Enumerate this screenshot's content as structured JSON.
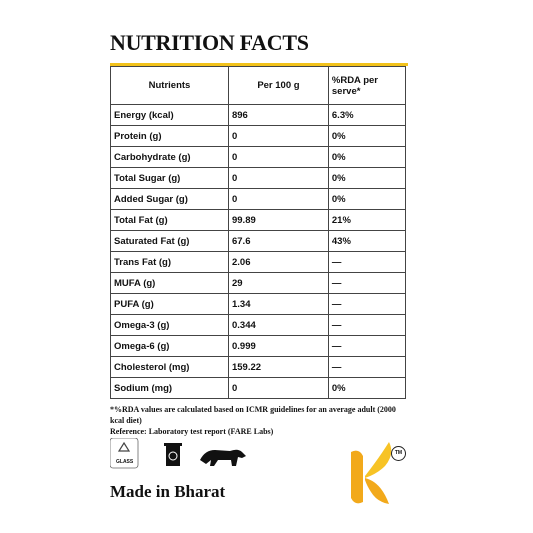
{
  "header": {
    "title": "NUTRITION FACTS"
  },
  "table": {
    "columns": [
      "Nutrients",
      "Per 100 g",
      "%RDA per serve*"
    ],
    "rows": [
      [
        "Energy (kcal)",
        "896",
        "6.3%"
      ],
      [
        "Protein (g)",
        "0",
        "0%"
      ],
      [
        "Carbohydrate (g)",
        "0",
        "0%"
      ],
      [
        "Total Sugar (g)",
        "0",
        "0%"
      ],
      [
        "Added Sugar (g)",
        "0",
        "0%"
      ],
      [
        "Total Fat (g)",
        "99.89",
        "21%"
      ],
      [
        "Saturated Fat (g)",
        "67.6",
        "43%"
      ],
      [
        "Trans Fat (g)",
        "2.06",
        "—"
      ],
      [
        "MUFA (g)",
        "29",
        "—"
      ],
      [
        "PUFA (g)",
        "1.34",
        "—"
      ],
      [
        "Omega-3 (g)",
        "0.344",
        "—"
      ],
      [
        "Omega-6 (g)",
        "0.999",
        "—"
      ],
      [
        "Cholesterol (mg)",
        "159.22",
        "—"
      ],
      [
        "Sodium (mg)",
        "0",
        "0%"
      ]
    ]
  },
  "footnotes": [
    "*%RDA values are calculated based on ICMR guidelines for an average adult (2000 kcal diet)",
    "Reference: Laboratory test report (FARE Labs)"
  ],
  "icons": {
    "glass": "GLASS",
    "trademark": "TM"
  },
  "footer": {
    "origin": "Made in Bharat"
  }
}
